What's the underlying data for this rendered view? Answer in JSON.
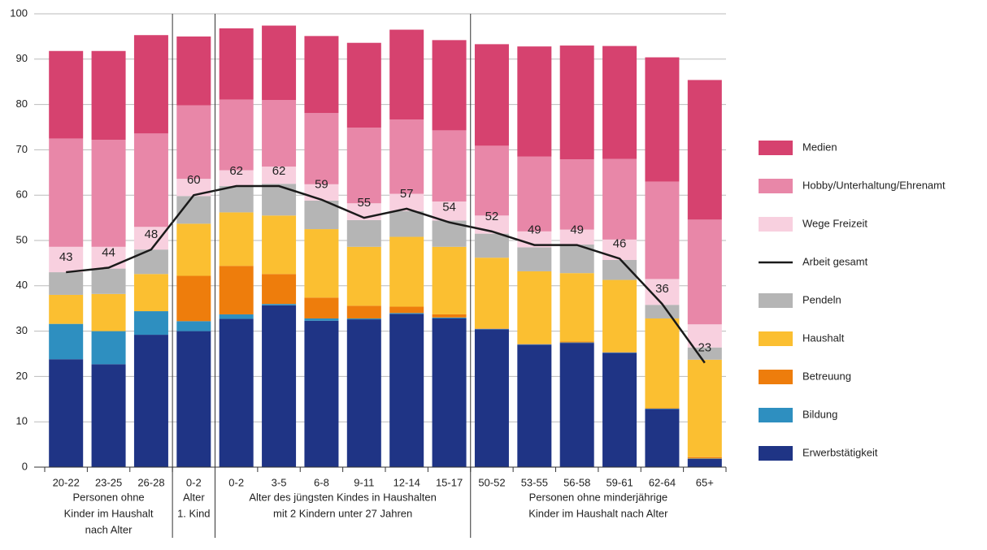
{
  "chart_data": {
    "type": "bar",
    "stacked": true,
    "categories": [
      "20-22",
      "23-25",
      "26-28",
      "0-2",
      "0-2",
      "3-5",
      "6-8",
      "9-11",
      "12-14",
      "15-17",
      "50-52",
      "53-55",
      "56-58",
      "59-61",
      "62-64",
      "65+"
    ],
    "groups": [
      {
        "label": [
          "Personen ohne",
          "Kinder im Haushalt",
          "nach Alter"
        ]
      },
      {
        "label": [
          "Alter",
          "1. Kind"
        ]
      },
      {
        "label": [
          "Alter des jüngsten Kindes in Haushalten",
          "mit 2 Kindern unter 27 Jahren"
        ]
      },
      {
        "label": [
          "Personen ohne minderjährige",
          "Kinder im Haushalt nach Alter"
        ]
      }
    ],
    "series": [
      {
        "name": "Erwerbstätigkeit",
        "color": "#1f3485",
        "values": [
          23.8,
          22.7,
          29.2,
          30,
          32.7,
          35.7,
          32.3,
          32.6,
          33.8,
          32.8,
          30.4,
          27,
          27.4,
          25.2,
          12.8,
          1.8
        ]
      },
      {
        "name": "Bildung",
        "color": "#2e8fc0",
        "values": [
          7.8,
          7.3,
          5.2,
          2.2,
          1,
          0.3,
          0.5,
          0.2,
          0.2,
          0.2,
          0.1,
          0.1,
          0.1,
          0.1,
          0.1,
          0.1
        ]
      },
      {
        "name": "Betreuung",
        "color": "#ee7d0c",
        "values": [
          0,
          0,
          0,
          10,
          10.7,
          6.6,
          4.6,
          2.8,
          1.4,
          0.7,
          0.1,
          0.1,
          0.2,
          0.1,
          0.1,
          0.3
        ]
      },
      {
        "name": "Haushalt",
        "color": "#fbbf31",
        "values": [
          6.4,
          8.2,
          8.2,
          11.5,
          11.8,
          12.9,
          15.1,
          13,
          15.4,
          14.9,
          15.6,
          16,
          15.1,
          15.9,
          19.8,
          21.5
        ]
      },
      {
        "name": "Pendeln",
        "color": "#b5b5b5",
        "values": [
          5,
          5.6,
          5.4,
          6.1,
          5.8,
          7,
          6.3,
          5.9,
          5.7,
          5.8,
          5.3,
          5.3,
          6.3,
          4.4,
          3,
          2.7
        ]
      },
      {
        "name": "Wege Freizeit",
        "color": "#f8d0df",
        "values": [
          5.6,
          4.8,
          5,
          3.8,
          3.5,
          3.8,
          3.6,
          3.7,
          3.8,
          4.2,
          4,
          3.5,
          3.3,
          4.5,
          5.7,
          5.1
        ]
      },
      {
        "name": "Hobby/Unterhaltung/Ehrenamt",
        "color": "#e887a8",
        "values": [
          23.9,
          23.6,
          20.6,
          16.2,
          15.6,
          14.7,
          15.7,
          16.7,
          16.4,
          15.7,
          15.4,
          16.5,
          15.5,
          17.8,
          21.5,
          23.1
        ]
      },
      {
        "name": "Medien",
        "color": "#d6426f",
        "values": [
          19.3,
          19.6,
          21.7,
          15.2,
          15.7,
          16.4,
          17,
          18.7,
          19.8,
          19.9,
          22.4,
          24.3,
          25.1,
          24.9,
          27.4,
          30.8
        ]
      },
      {
        "name": "Arbeit gesamt",
        "type": "line",
        "color": "#1a1a1a",
        "values": [
          43,
          44,
          48,
          60,
          62,
          62,
          59,
          55,
          57,
          54,
          52,
          49,
          49,
          46,
          36,
          23
        ]
      }
    ],
    "ylim": [
      0,
      100
    ],
    "yticks": [
      0,
      10,
      20,
      30,
      40,
      50,
      60,
      70,
      80,
      90,
      100
    ],
    "grid": true
  }
}
